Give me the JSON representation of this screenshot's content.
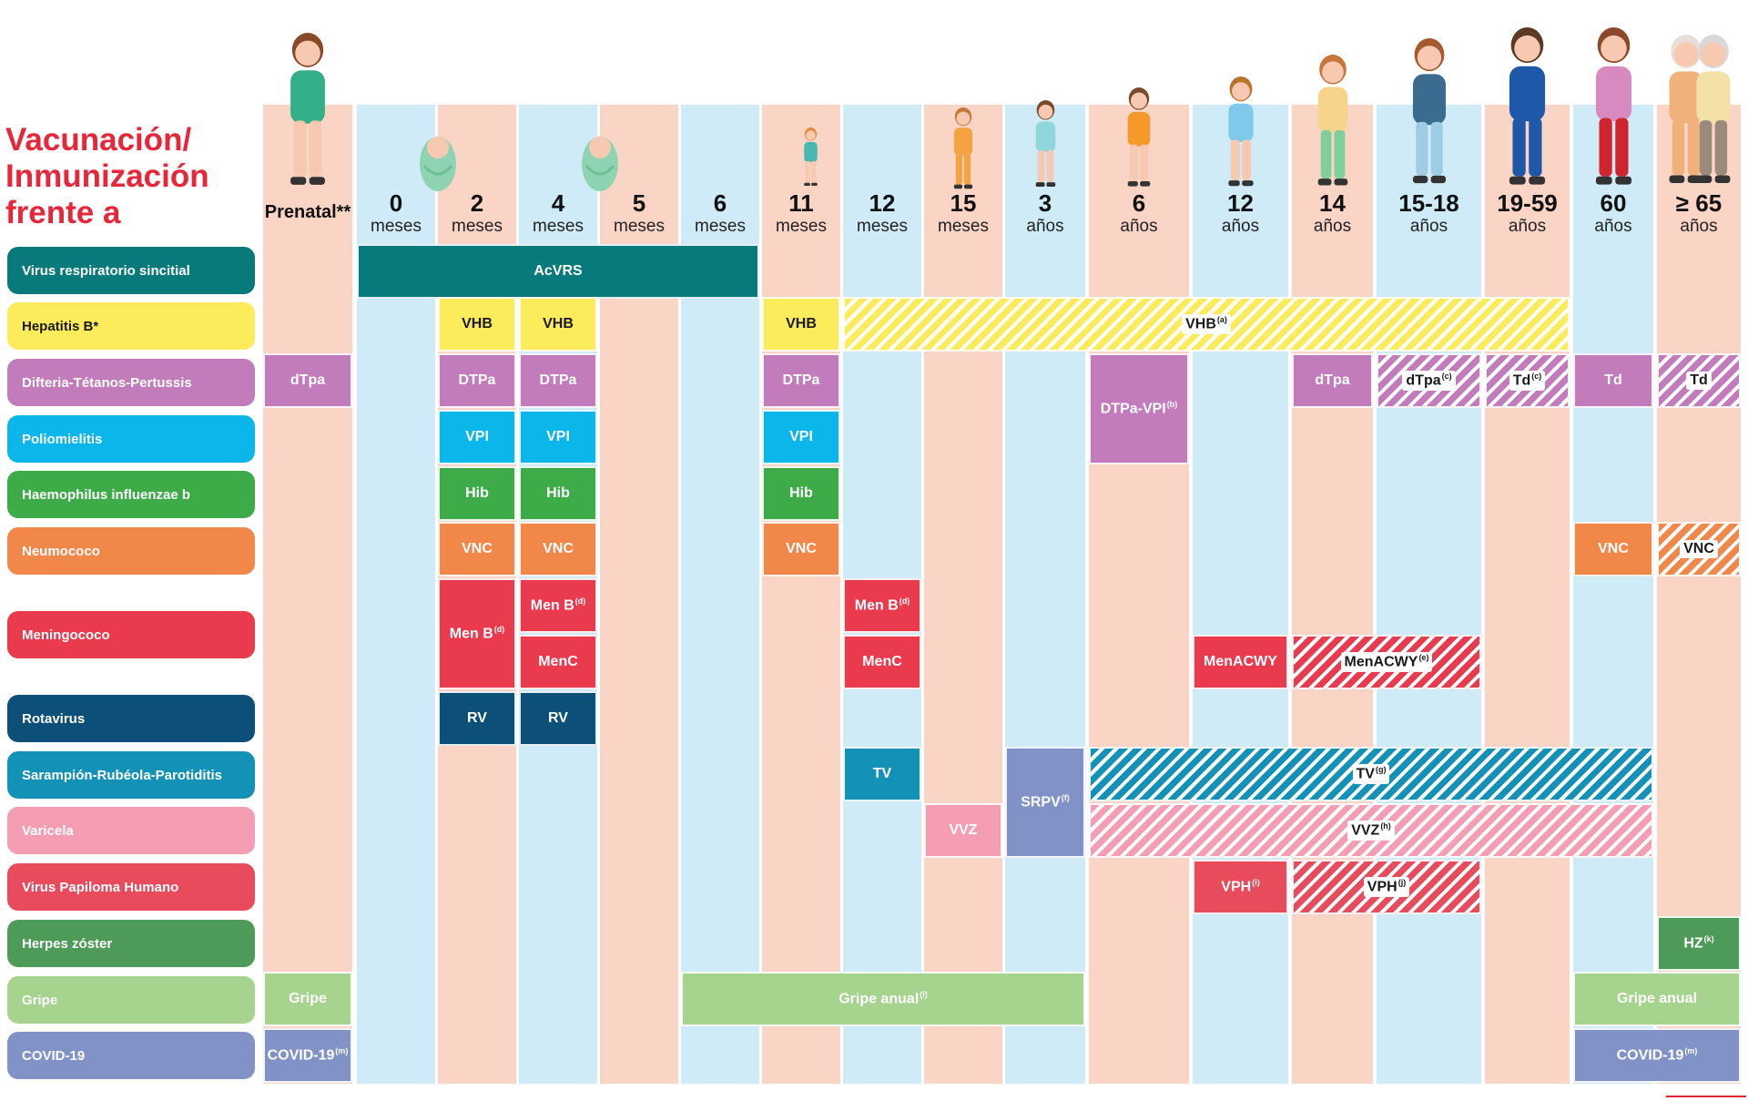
{
  "title": [
    "Vacunación/",
    "Inmunización",
    "frente a"
  ],
  "colors": {
    "peach": "#fad5c5",
    "blue": "#d0ebf8",
    "title_red": "#e8263a"
  },
  "ages": [
    {
      "num": "Prenatal**",
      "unit": ""
    },
    {
      "num": "0",
      "unit": "meses"
    },
    {
      "num": "2",
      "unit": "meses"
    },
    {
      "num": "4",
      "unit": "meses"
    },
    {
      "num": "5",
      "unit": "meses"
    },
    {
      "num": "6",
      "unit": "meses"
    },
    {
      "num": "11",
      "unit": "meses"
    },
    {
      "num": "12",
      "unit": "meses"
    },
    {
      "num": "15",
      "unit": "meses"
    },
    {
      "num": "3",
      "unit": "años"
    },
    {
      "num": "6",
      "unit": "años"
    },
    {
      "num": "12",
      "unit": "años"
    },
    {
      "num": "14",
      "unit": "años"
    },
    {
      "num": "15-18",
      "unit": "años"
    },
    {
      "num": "19-59",
      "unit": "años"
    },
    {
      "num": "60",
      "unit": "años"
    },
    {
      "num": "≥ 65",
      "unit": "años"
    }
  ],
  "rows": [
    {
      "label": "Virus respiratorio sincitial",
      "color": "#087a7c"
    },
    {
      "label": "Hepatitis B*",
      "color": "#fcec5c",
      "text_color": "#1a1a1a"
    },
    {
      "label": "Difteria-Tétanos-Pertussis",
      "color": "#c27bbb"
    },
    {
      "label": "Poliomielitis",
      "color": "#0bb7ea"
    },
    {
      "label": "Haemophilus influenzae b",
      "color": "#3eab49"
    },
    {
      "label": "Neumococo",
      "color": "#f2874a"
    },
    {
      "label": "Meningococo",
      "color": "#e93a4e"
    },
    {
      "label": "Rotavirus",
      "color": "#0c507a"
    },
    {
      "label": "Sarampión-Rubéola-Parotiditis",
      "color": "#1491b6"
    },
    {
      "label": "Varicela",
      "color": "#f49db3"
    },
    {
      "label": "Virus Papiloma Humano",
      "color": "#e84b5b"
    },
    {
      "label": "Herpes zóster",
      "color": "#4d9a59"
    },
    {
      "label": "Gripe",
      "color": "#a6d48e"
    },
    {
      "label": "COVID-19",
      "color": "#8092c6"
    }
  ],
  "vaccines": [
    {
      "label": "AcVRS",
      "sup": "",
      "color": "#087a7c",
      "cols": [
        1,
        5
      ],
      "rows": [
        0,
        0
      ]
    },
    {
      "label": "VHB",
      "sup": "",
      "color": "#fcec5c",
      "dark": true,
      "cols": [
        2,
        2
      ],
      "rows": [
        1,
        1
      ]
    },
    {
      "label": "VHB",
      "sup": "",
      "color": "#fcec5c",
      "dark": true,
      "cols": [
        3,
        3
      ],
      "rows": [
        1,
        1
      ]
    },
    {
      "label": "VHB",
      "sup": "",
      "color": "#fcec5c",
      "dark": true,
      "cols": [
        6,
        6
      ],
      "rows": [
        1,
        1
      ]
    },
    {
      "label": "VHB",
      "sup": "(a)",
      "color": "#fcec5c",
      "hatch": true,
      "cols": [
        7,
        14
      ],
      "rows": [
        1,
        1
      ]
    },
    {
      "label": "dTpa",
      "sup": "",
      "color": "#c27bbb",
      "cols": [
        0,
        0
      ],
      "rows": [
        2,
        2
      ]
    },
    {
      "label": "DTPa",
      "sup": "",
      "color": "#c27bbb",
      "cols": [
        2,
        2
      ],
      "rows": [
        2,
        2
      ]
    },
    {
      "label": "DTPa",
      "sup": "",
      "color": "#c27bbb",
      "cols": [
        3,
        3
      ],
      "rows": [
        2,
        2
      ]
    },
    {
      "label": "DTPa",
      "sup": "",
      "color": "#c27bbb",
      "cols": [
        6,
        6
      ],
      "rows": [
        2,
        2
      ]
    },
    {
      "label": "DTPa-VPI",
      "sup": "(b)",
      "color": "#c27bbb",
      "cols": [
        10,
        10
      ],
      "rows": [
        2,
        3
      ]
    },
    {
      "label": "dTpa",
      "sup": "",
      "color": "#c27bbb",
      "cols": [
        12,
        12
      ],
      "rows": [
        2,
        2
      ]
    },
    {
      "label": "dTpa",
      "sup": "(c)",
      "color": "#c27bbb",
      "hatch": true,
      "cols": [
        13,
        13
      ],
      "rows": [
        2,
        2
      ]
    },
    {
      "label": "Td",
      "sup": "(c)",
      "color": "#c27bbb",
      "hatch": true,
      "cols": [
        14,
        14
      ],
      "rows": [
        2,
        2
      ]
    },
    {
      "label": "Td",
      "sup": "",
      "color": "#c27bbb",
      "cols": [
        15,
        15
      ],
      "rows": [
        2,
        2
      ]
    },
    {
      "label": "Td",
      "sup": "",
      "color": "#c27bbb",
      "hatch": true,
      "cols": [
        16,
        16
      ],
      "rows": [
        2,
        2
      ]
    },
    {
      "label": "VPI",
      "sup": "",
      "color": "#0bb7ea",
      "cols": [
        2,
        2
      ],
      "rows": [
        3,
        3
      ]
    },
    {
      "label": "VPI",
      "sup": "",
      "color": "#0bb7ea",
      "cols": [
        3,
        3
      ],
      "rows": [
        3,
        3
      ]
    },
    {
      "label": "VPI",
      "sup": "",
      "color": "#0bb7ea",
      "cols": [
        6,
        6
      ],
      "rows": [
        3,
        3
      ]
    },
    {
      "label": "Hib",
      "sup": "",
      "color": "#3eab49",
      "cols": [
        2,
        2
      ],
      "rows": [
        4,
        4
      ]
    },
    {
      "label": "Hib",
      "sup": "",
      "color": "#3eab49",
      "cols": [
        3,
        3
      ],
      "rows": [
        4,
        4
      ]
    },
    {
      "label": "Hib",
      "sup": "",
      "color": "#3eab49",
      "cols": [
        6,
        6
      ],
      "rows": [
        4,
        4
      ]
    },
    {
      "label": "VNC",
      "sup": "",
      "color": "#f2874a",
      "cols": [
        2,
        2
      ],
      "rows": [
        5,
        5
      ]
    },
    {
      "label": "VNC",
      "sup": "",
      "color": "#f2874a",
      "cols": [
        3,
        3
      ],
      "rows": [
        5,
        5
      ]
    },
    {
      "label": "VNC",
      "sup": "",
      "color": "#f2874a",
      "cols": [
        6,
        6
      ],
      "rows": [
        5,
        5
      ]
    },
    {
      "label": "VNC",
      "sup": "",
      "color": "#f2874a",
      "cols": [
        15,
        15
      ],
      "rows": [
        5,
        5
      ]
    },
    {
      "label": "VNC",
      "sup": "",
      "color": "#f2874a",
      "hatch": true,
      "cols": [
        16,
        16
      ],
      "rows": [
        5,
        5
      ]
    },
    {
      "label": "Men B",
      "sup": "(d)",
      "color": "#e93a4e",
      "cols": [
        2,
        2
      ],
      "rows": [
        6,
        7
      ]
    },
    {
      "label": "Men B",
      "sup": "(d)",
      "color": "#e93a4e",
      "cols": [
        3,
        3
      ],
      "rows": [
        6,
        6
      ]
    },
    {
      "label": "MenC",
      "sup": "",
      "color": "#e93a4e",
      "cols": [
        3,
        3
      ],
      "rows": [
        7,
        7
      ]
    },
    {
      "label": "Men B",
      "sup": "(d)",
      "color": "#e93a4e",
      "cols": [
        7,
        7
      ],
      "rows": [
        6,
        6
      ]
    },
    {
      "label": "MenC",
      "sup": "",
      "color": "#e93a4e",
      "cols": [
        7,
        7
      ],
      "rows": [
        7,
        7
      ]
    },
    {
      "label": "MenACWY",
      "sup": "",
      "color": "#e93a4e",
      "cols": [
        11,
        11
      ],
      "rows": [
        7,
        7
      ]
    },
    {
      "label": "MenACWY",
      "sup": "(e)",
      "color": "#e93a4e",
      "hatch": true,
      "cols": [
        12,
        13
      ],
      "rows": [
        7,
        7
      ]
    },
    {
      "label": "RV",
      "sup": "",
      "color": "#0c507a",
      "cols": [
        2,
        2
      ],
      "rows": [
        8,
        8
      ]
    },
    {
      "label": "RV",
      "sup": "",
      "color": "#0c507a",
      "cols": [
        3,
        3
      ],
      "rows": [
        8,
        8
      ]
    },
    {
      "label": "TV",
      "sup": "",
      "color": "#1491b6",
      "cols": [
        7,
        7
      ],
      "rows": [
        9,
        9
      ]
    },
    {
      "label": "SRPV",
      "sup": "(f)",
      "color": "#8092c6",
      "cols": [
        9,
        9
      ],
      "rows": [
        9,
        10
      ]
    },
    {
      "label": "TV",
      "sup": "(g)",
      "color": "#1491b6",
      "hatch": true,
      "cols": [
        10,
        15
      ],
      "rows": [
        9,
        9
      ]
    },
    {
      "label": "VVZ",
      "sup": "",
      "color": "#f49db3",
      "cols": [
        8,
        8
      ],
      "rows": [
        10,
        10
      ]
    },
    {
      "label": "VVZ",
      "sup": "(h)",
      "color": "#f49db3",
      "hatch": true,
      "cols": [
        10,
        15
      ],
      "rows": [
        10,
        10
      ]
    },
    {
      "label": "VPH",
      "sup": "(i)",
      "color": "#e84b5b",
      "cols": [
        11,
        11
      ],
      "rows": [
        11,
        11
      ]
    },
    {
      "label": "VPH",
      "sup": "(j)",
      "color": "#e84b5b",
      "hatch": true,
      "cols": [
        12,
        13
      ],
      "rows": [
        11,
        11
      ]
    },
    {
      "label": "HZ",
      "sup": "(k)",
      "color": "#4d9a59",
      "cols": [
        16,
        16
      ],
      "rows": [
        12,
        12
      ]
    },
    {
      "label": "Gripe",
      "sup": "",
      "color": "#a6d48e",
      "cols": [
        0,
        0
      ],
      "rows": [
        13,
        13
      ]
    },
    {
      "label": "Gripe anual",
      "sup": "(l)",
      "color": "#a6d48e",
      "cols": [
        5,
        9
      ],
      "rows": [
        13,
        13
      ]
    },
    {
      "label": "Gripe anual",
      "sup": "",
      "color": "#a6d48e",
      "cols": [
        15,
        16
      ],
      "rows": [
        13,
        13
      ]
    },
    {
      "label": "COVID-19",
      "sup": "(m)",
      "color": "#8092c6",
      "cols": [
        0,
        0
      ],
      "rows": [
        14,
        14
      ]
    },
    {
      "label": "COVID-19",
      "sup": "(m)",
      "color": "#8092c6",
      "cols": [
        15,
        16
      ],
      "rows": [
        14,
        14
      ]
    }
  ]
}
